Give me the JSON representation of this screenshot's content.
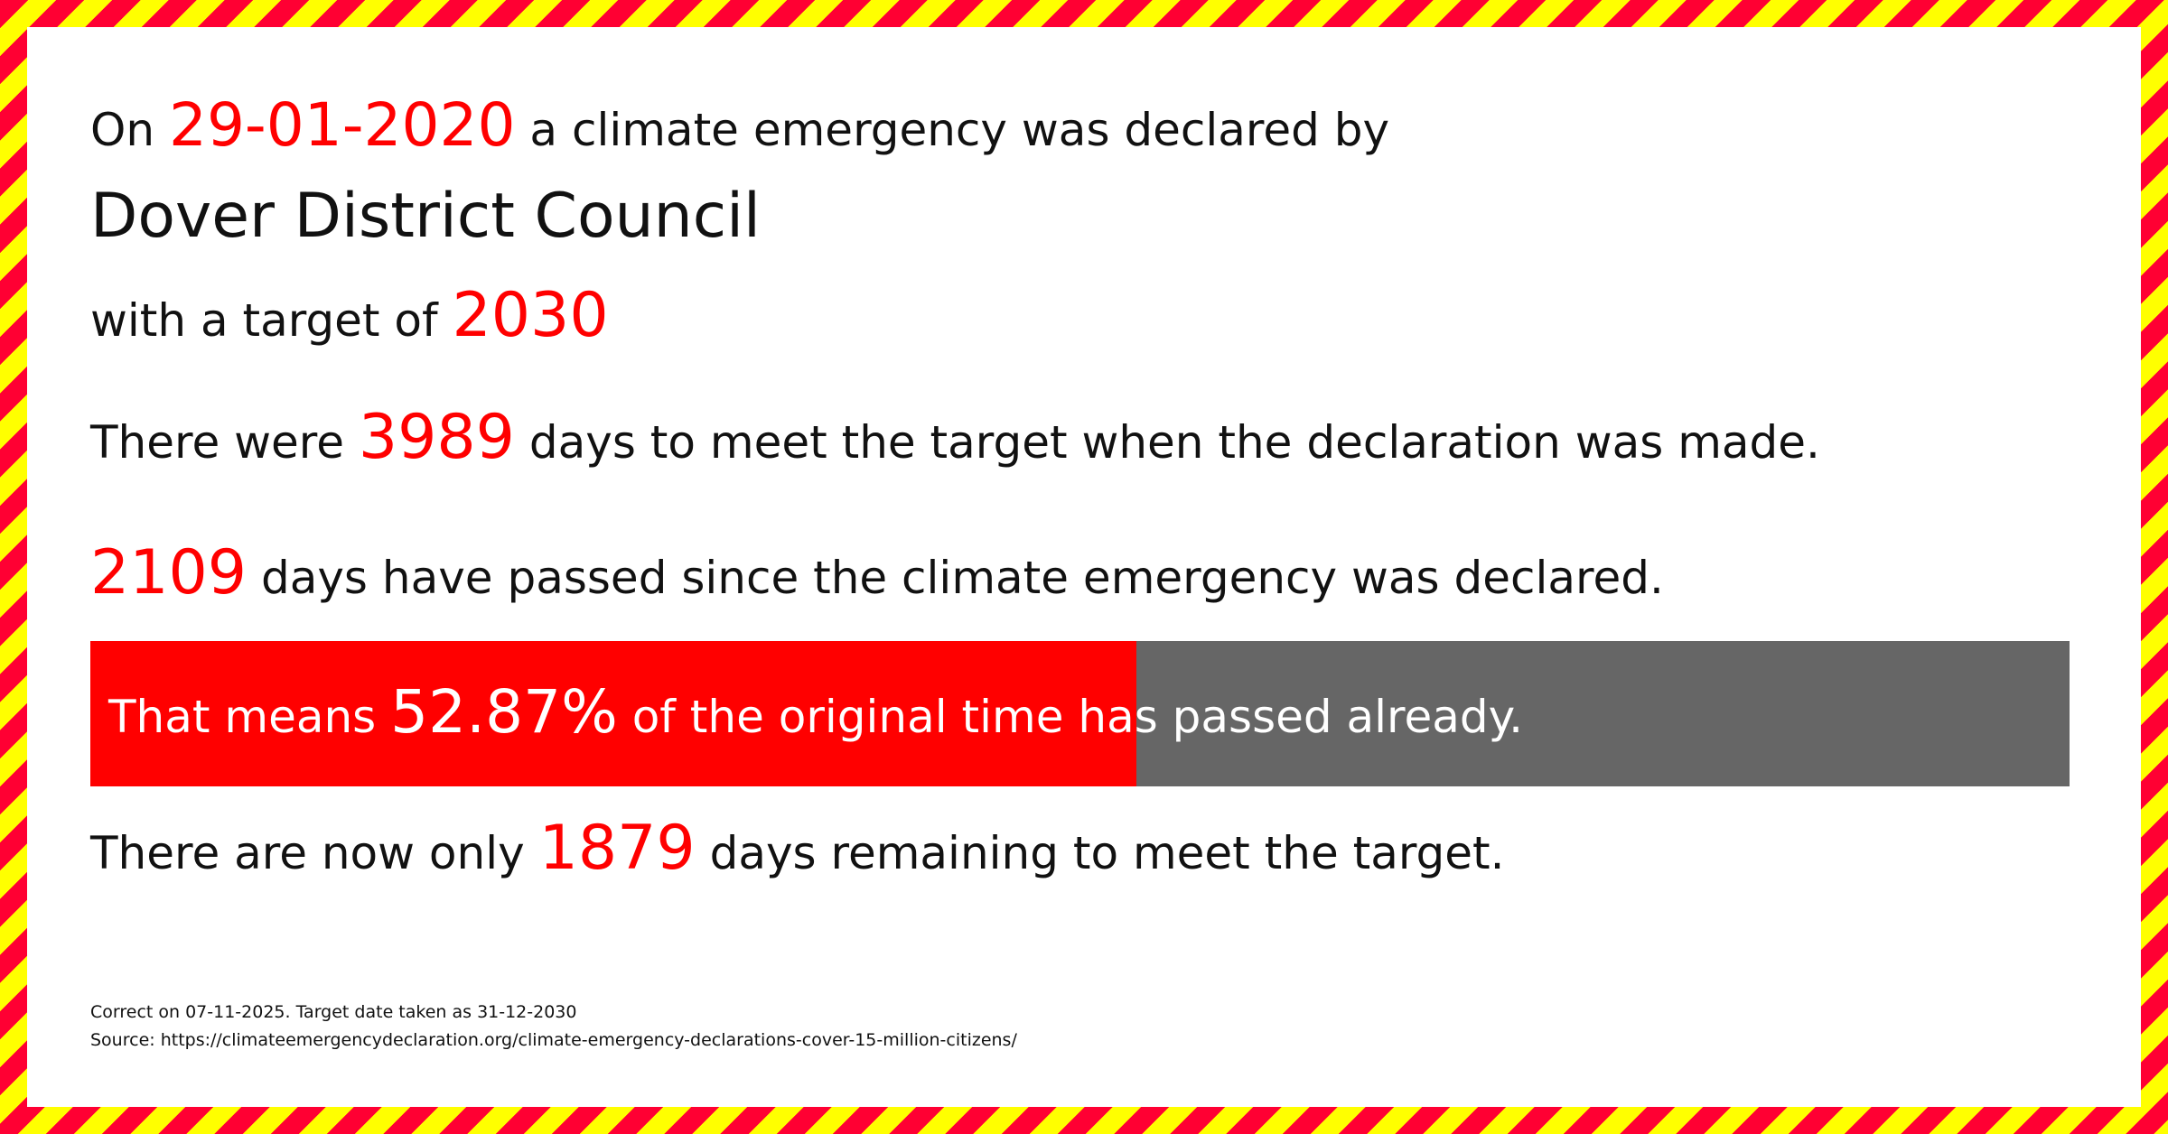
{
  "line1": {
    "prefix": "On",
    "date": "29-01-2020",
    "suffix": "a climate emergency was declared by"
  },
  "council": "Dover District Council",
  "line3": {
    "prefix": "with a target of",
    "year": "2030"
  },
  "line4": {
    "prefix": "There were",
    "days": "3989",
    "suffix": "days to meet the target when the declaration was made."
  },
  "line5": {
    "days": "2109",
    "suffix": "days have passed since the climate emergency was declared."
  },
  "progress": {
    "percent": 52.87,
    "prefix": "That means",
    "value": "52.87%",
    "suffix": "of the original time has passed already."
  },
  "line6": {
    "prefix": "There are now only",
    "days": "1879",
    "suffix": "days remaining to meet the target."
  },
  "footer": {
    "correct": "Correct on 07-11-2025. Target date taken as 31-12-2030",
    "source": "Source: https://climateemergencydeclaration.org/climate-emergency-declarations-cover-15-million-citizens/"
  },
  "colors": {
    "accent": "#ff0000",
    "bar_remaining": "#666666",
    "stripe_red": "#ff0033",
    "stripe_yellow": "#ffff00"
  }
}
